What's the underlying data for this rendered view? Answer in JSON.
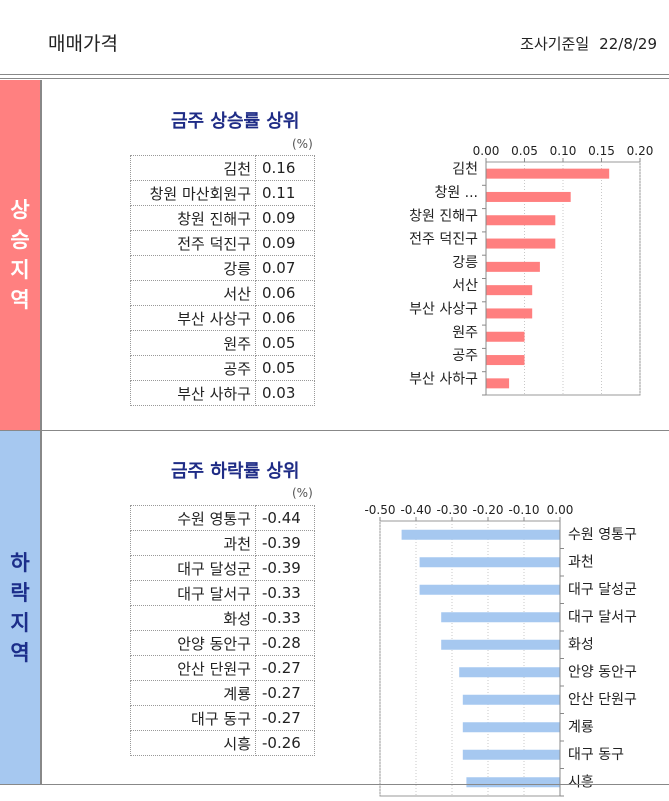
{
  "header": {
    "title": "매매가격",
    "survey_label": "조사기준일",
    "survey_date": "22/8/29"
  },
  "rise": {
    "side_label": "상승지역",
    "title": "금주 상승률 상위",
    "unit": "(%)",
    "rows": [
      {
        "name": "김천",
        "value": "0.16"
      },
      {
        "name": "창원 마산회원구",
        "value": "0.11"
      },
      {
        "name": "창원 진해구",
        "value": "0.09"
      },
      {
        "name": "전주 덕진구",
        "value": "0.09"
      },
      {
        "name": "강릉",
        "value": "0.07"
      },
      {
        "name": "서산",
        "value": "0.06"
      },
      {
        "name": "부산 사상구",
        "value": "0.06"
      },
      {
        "name": "원주",
        "value": "0.05"
      },
      {
        "name": "공주",
        "value": "0.05"
      },
      {
        "name": "부산 사하구",
        "value": "0.03"
      }
    ]
  },
  "fall": {
    "side_label": "하락지역",
    "title": "금주 하락률 상위",
    "unit": "(%)",
    "rows": [
      {
        "name": "수원 영통구",
        "value": "-0.44"
      },
      {
        "name": "과천",
        "value": "-0.39"
      },
      {
        "name": "대구 달성군",
        "value": "-0.39"
      },
      {
        "name": "대구 달서구",
        "value": "-0.33"
      },
      {
        "name": "화성",
        "value": "-0.33"
      },
      {
        "name": "안양 동안구",
        "value": "-0.28"
      },
      {
        "name": "안산 단원구",
        "value": "-0.27"
      },
      {
        "name": "계룡",
        "value": "-0.27"
      },
      {
        "name": "대구 동구",
        "value": "-0.27"
      },
      {
        "name": "시흥",
        "value": "-0.26"
      }
    ]
  },
  "chart_data": [
    {
      "type": "bar",
      "orientation": "horizontal",
      "categories": [
        "김천",
        "창원 ...",
        "창원 진해구",
        "전주 덕진구",
        "강릉",
        "서산",
        "부산 사상구",
        "원주",
        "공주",
        "부산 사하구"
      ],
      "values": [
        0.16,
        0.11,
        0.09,
        0.09,
        0.07,
        0.06,
        0.06,
        0.05,
        0.05,
        0.03
      ],
      "xlim": [
        0.0,
        0.2
      ],
      "ticks": [
        0.0,
        0.05,
        0.1,
        0.15,
        0.2
      ],
      "tick_labels": [
        "0.00",
        "0.05",
        "0.10",
        "0.15",
        "0.20"
      ],
      "axis_position": "top",
      "bar_color": "#ff7f7f",
      "grid": true
    },
    {
      "type": "bar",
      "orientation": "horizontal",
      "categories": [
        "수원 영통구",
        "과천",
        "대구 달성군",
        "대구 달서구",
        "화성",
        "안양 동안구",
        "안산 단원구",
        "계룡",
        "대구 동구",
        "시흥"
      ],
      "values": [
        -0.44,
        -0.39,
        -0.39,
        -0.33,
        -0.33,
        -0.28,
        -0.27,
        -0.27,
        -0.27,
        -0.26
      ],
      "xlim": [
        -0.5,
        0.0
      ],
      "ticks": [
        -0.5,
        -0.4,
        -0.3,
        -0.2,
        -0.1,
        0.0
      ],
      "tick_labels": [
        "-0.50",
        "-0.40",
        "-0.30",
        "-0.20",
        "-0.10",
        "0.00"
      ],
      "axis_position": "top",
      "category_labels_side": "right",
      "bar_color": "#a6c8f0",
      "grid": true
    }
  ]
}
